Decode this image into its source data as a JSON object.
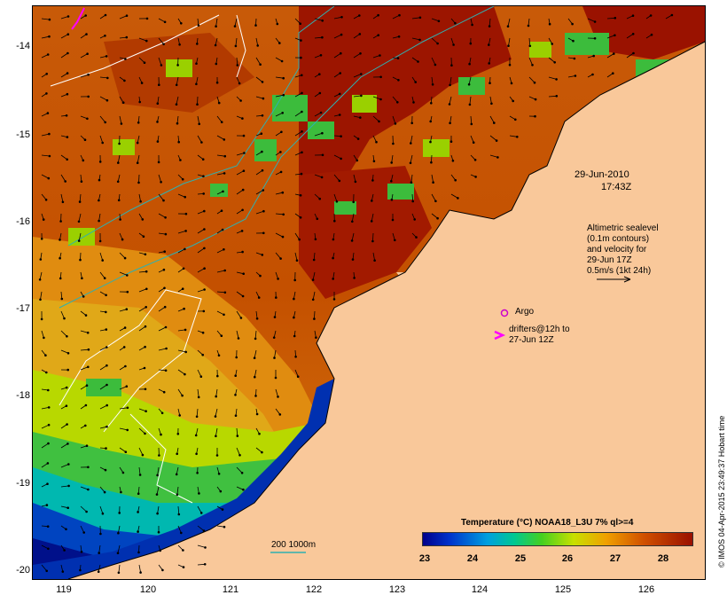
{
  "map": {
    "title_date": "29-Jun-2010",
    "title_time": "17:43Z",
    "legend": {
      "altimetry_lines": [
        "Altimetric sealevel",
        "(0.1m contours)",
        "and velocity for",
        "29-Jun 17Z",
        "0.5m/s (1kt 24h)"
      ],
      "argo_label": "Argo",
      "drifters_line1": "drifters@12h to",
      "drifters_line2": "27-Jun 12Z",
      "argo_color": "#cc00cc",
      "drifter_color": "#ff00ff"
    },
    "scale_label": "200  1000m",
    "credit": "© IMOS 04-Apr-2015 23:49:37 Hobart time",
    "colors": {
      "land": "#f9c89a",
      "warm": "#a01800",
      "mid": "#d06810",
      "cool": "#f0c000",
      "green": "#40c040",
      "cold": "#003aa0"
    }
  },
  "axes": {
    "x_ticks": [
      "119",
      "120",
      "121",
      "122",
      "123",
      "124",
      "125",
      "126"
    ],
    "y_ticks": [
      "-14",
      "-15",
      "-16",
      "-17",
      "-18",
      "-19",
      "-20"
    ]
  },
  "colorbar": {
    "title": "Temperature (°C) NOAA18_L3U 7% ql>=4",
    "ticks": [
      "23",
      "24",
      "25",
      "26",
      "27",
      "28"
    ]
  }
}
